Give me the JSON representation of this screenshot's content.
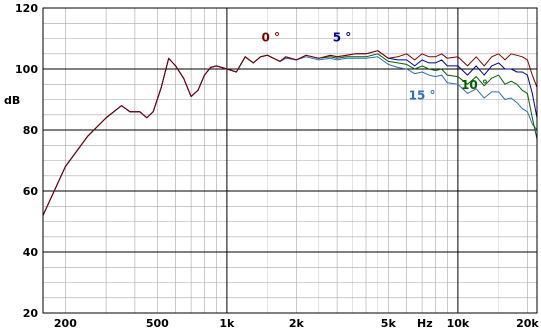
{
  "chart_data": {
    "type": "line",
    "title": "",
    "xlabel": "Hz",
    "ylabel": "dB",
    "xscale": "log",
    "xlim": [
      160,
      22000
    ],
    "ylim": [
      20,
      120
    ],
    "grid": true,
    "x_tick_labels": [
      {
        "value": 200,
        "label": "200"
      },
      {
        "value": 500,
        "label": "500"
      },
      {
        "value": 1000,
        "label": "1k"
      },
      {
        "value": 2000,
        "label": "2k"
      },
      {
        "value": 5000,
        "label": "5k"
      },
      {
        "value": 10000,
        "label": "10k"
      },
      {
        "value": 20000,
        "label": "20k"
      }
    ],
    "y_tick_labels": [
      {
        "value": 20,
        "label": "20"
      },
      {
        "value": 40,
        "label": "40"
      },
      {
        "value": 60,
        "label": "60"
      },
      {
        "value": 80,
        "label": "80"
      },
      {
        "value": 100,
        "label": "100"
      },
      {
        "value": 120,
        "label": "120"
      }
    ],
    "x": [
      160,
      200,
      250,
      300,
      350,
      380,
      420,
      450,
      480,
      520,
      560,
      600,
      650,
      700,
      750,
      800,
      850,
      900,
      1000,
      1100,
      1200,
      1300,
      1400,
      1500,
      1700,
      1800,
      2000,
      2200,
      2500,
      2800,
      3000,
      3300,
      3600,
      4000,
      4500,
      5000,
      5500,
      6000,
      6500,
      7000,
      7500,
      8000,
      8500,
      9000,
      10000,
      11000,
      12000,
      13000,
      14000,
      15000,
      16000,
      17000,
      18000,
      19000,
      20000,
      21000,
      22000
    ],
    "series": [
      {
        "name": "0°",
        "color": "#800000",
        "values": [
          52,
          68,
          78,
          84,
          88,
          86,
          86,
          84,
          86,
          94,
          103.5,
          101,
          97,
          91,
          93,
          98,
          100.5,
          101,
          100,
          99,
          104,
          102,
          104,
          104.5,
          102.5,
          104,
          103,
          104.5,
          103.5,
          104.5,
          104,
          104.5,
          105,
          105,
          106,
          103.5,
          104,
          105,
          103,
          105,
          104,
          104,
          105,
          103.5,
          104,
          101,
          104,
          101,
          104,
          105,
          103,
          105,
          104.5,
          104,
          103,
          98,
          94
        ]
      },
      {
        "name": "5°",
        "color": "#0000a0",
        "values": [
          52,
          68,
          78,
          84,
          88,
          86,
          86,
          84,
          86,
          94,
          103.5,
          101,
          97,
          91,
          93,
          98,
          100.5,
          101,
          100,
          99,
          104,
          102,
          104,
          104.5,
          102.5,
          104,
          103,
          104.5,
          103.5,
          104.5,
          104,
          104.5,
          105,
          105,
          106,
          103.5,
          103,
          103,
          101,
          103,
          102,
          102,
          103,
          101,
          101,
          98,
          101,
          98,
          101,
          102,
          100,
          100,
          99,
          99,
          98,
          92,
          84
        ]
      },
      {
        "name": "10°",
        "color": "#006000",
        "values": [
          52,
          68,
          78,
          84,
          88,
          86,
          86,
          84,
          86,
          94,
          103.5,
          101,
          97,
          91,
          93,
          98,
          100.5,
          101,
          100,
          99,
          104,
          102,
          104,
          104.5,
          102.5,
          104,
          103,
          104.5,
          103.5,
          104,
          103.5,
          104,
          104,
          104,
          105,
          102.5,
          102,
          101.5,
          100,
          101,
          100,
          99.5,
          100,
          98,
          97.5,
          95,
          97.5,
          94.5,
          97,
          98,
          95,
          96,
          95,
          93,
          92,
          84,
          77
        ]
      },
      {
        "name": "15°",
        "color": "#3070b0",
        "values": [
          52,
          68,
          78,
          84,
          88,
          86,
          86,
          84,
          86,
          94,
          103.5,
          101,
          97,
          91,
          93,
          98,
          100.5,
          101,
          100,
          99,
          104,
          102,
          104,
          104.5,
          102.5,
          103.5,
          103,
          104,
          103,
          103.5,
          103,
          103.5,
          103.5,
          103.5,
          104,
          101.5,
          100.5,
          100,
          98.5,
          99,
          98,
          97.5,
          98,
          95.5,
          95,
          92,
          93.5,
          90.5,
          92.5,
          92.5,
          90,
          90.5,
          89,
          87,
          86,
          82,
          80
        ]
      }
    ],
    "annotations": [
      {
        "text": "0 °",
        "series": "0°",
        "x": 1550,
        "y": 109
      },
      {
        "text": "5 °",
        "series": "5°",
        "x": 3150,
        "y": 109
      },
      {
        "text": "10 °",
        "series": "10°",
        "x": 11800,
        "y": 93.5
      },
      {
        "text": "15 °",
        "series": "15°",
        "x": 7000,
        "y": 90
      }
    ]
  }
}
